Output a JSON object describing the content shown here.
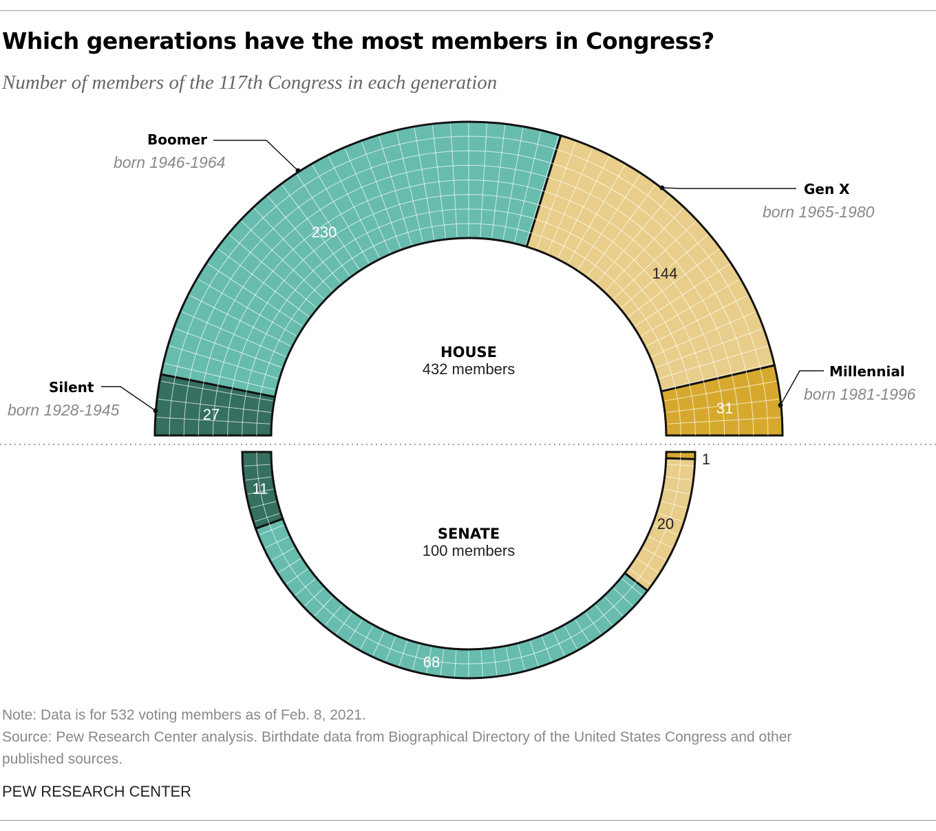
{
  "title": "Which generations have the most members in Congress?",
  "subtitle": "Number of members of the 117th Congress in each generation",
  "chart_data": {
    "type": "parliament-arc",
    "generations": [
      {
        "name": "Silent",
        "born": "born 1928-1945",
        "color": "#346f60"
      },
      {
        "name": "Boomer",
        "born": "born 1946-1964",
        "color": "#67bcae"
      },
      {
        "name": "Gen X",
        "born": "born 1965-1980",
        "color": "#e8ce8a"
      },
      {
        "name": "Millennial",
        "born": "born 1981-1996",
        "color": "#d6a92e"
      }
    ],
    "chambers": [
      {
        "name": "HOUSE",
        "total_label": "432 members",
        "values": [
          27,
          230,
          144,
          31
        ]
      },
      {
        "name": "SENATE",
        "total_label": "100 members",
        "values": [
          11,
          68,
          20,
          1
        ]
      }
    ],
    "value_labels": {
      "house": [
        "27",
        "230",
        "144",
        "31"
      ],
      "senate": [
        "11",
        "68",
        "20",
        "1"
      ]
    }
  },
  "note": "Note: Data is for 532 voting members as of Feb. 8, 2021.",
  "source_line1": "Source: Pew Research Center analysis. Birthdate data from Biographical Directory of the United States Congress and other",
  "source_line2": "published sources.",
  "credit": "PEW RESEARCH CENTER"
}
